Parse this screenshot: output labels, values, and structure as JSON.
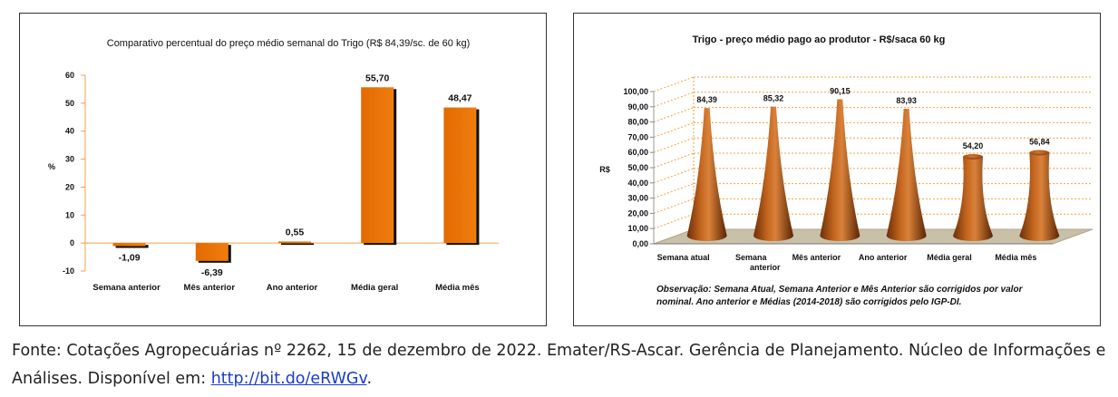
{
  "chart_data": [
    {
      "type": "bar",
      "title": "Comparativo percentual do preço médio semanal do Trigo (R$ 84,39/sc. de 60 kg)",
      "ylabel": "%",
      "ylim": [
        -10,
        60
      ],
      "yticks": [
        "-10",
        "0",
        "10",
        "20",
        "30",
        "40",
        "50",
        "60"
      ],
      "yticks_values": [
        -10,
        0,
        10,
        20,
        30,
        40,
        50,
        60
      ],
      "categories": [
        "Semana anterior",
        "Mês anterior",
        "Ano anterior",
        "Média geral",
        "Média mês"
      ],
      "values": [
        -1.09,
        -6.39,
        0.55,
        55.7,
        48.47
      ],
      "labels": [
        "-1,09",
        "-6,39",
        "0,55",
        "55,70",
        "48,47"
      ],
      "bar_color": "#e8720c",
      "grid": false
    },
    {
      "type": "bar",
      "title": "Trigo - preço médio pago ao produtor - R$/saca 60 kg",
      "ylabel": "R$",
      "ylim": [
        0,
        100
      ],
      "yticks": [
        "0,00",
        "10,00",
        "20,00",
        "30,00",
        "40,00",
        "50,00",
        "60,00",
        "70,00",
        "80,00",
        "90,00",
        "100,00"
      ],
      "yticks_values": [
        0,
        10,
        20,
        30,
        40,
        50,
        60,
        70,
        80,
        90,
        100
      ],
      "categories": [
        [
          "Semana atual"
        ],
        [
          "Semana",
          "anterior"
        ],
        [
          "Mês anterior"
        ],
        [
          "Ano anterior"
        ],
        [
          "Média geral"
        ],
        [
          "Média mês"
        ]
      ],
      "values": [
        84.39,
        85.32,
        90.15,
        83.93,
        54.2,
        56.84
      ],
      "labels": [
        "84,39",
        "85,32",
        "90,15",
        "83,93",
        "54,20",
        "56,84"
      ],
      "bar_color": "#b5561a",
      "grid_color": "#f2a23c",
      "grid": true,
      "note": [
        "Observação: Semana Atual, Semana Anterior e Mês Anterior são corrigidos por valor",
        "nominal. Ano anterior e Médias (2014-2018) são corrigidos pelo IGP-DI."
      ]
    }
  ],
  "footer": {
    "text": "Fonte: Cotações Agropecuárias nº 2262, 15 de dezembro de 2022. Emater/RS-Ascar. Gerência de Planejamento. Núcleo de Informações e Análises. Disponível em: ",
    "link": "http://bit.do/eRWGv",
    "end": "."
  }
}
